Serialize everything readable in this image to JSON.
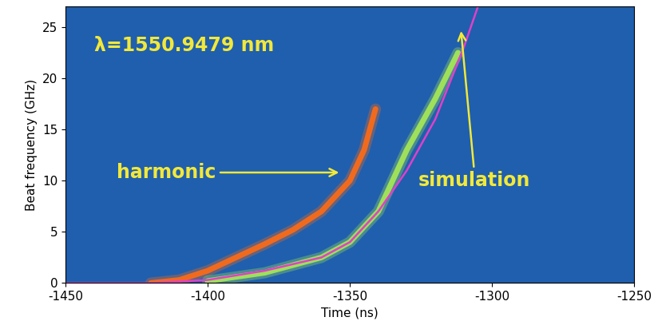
{
  "chart_data": {
    "type": "line",
    "xlabel": "Time (ns)",
    "ylabel": "Beat frequency (GHz)",
    "xlim": [
      -1450,
      -1250
    ],
    "ylim": [
      0,
      27
    ],
    "xticks": [
      -1450,
      -1400,
      -1350,
      -1300,
      -1250
    ],
    "yticks": [
      0,
      5,
      10,
      15,
      20,
      25
    ],
    "annotations": [
      "λ=1550.9479 nm",
      "harmonic",
      "simulation"
    ],
    "series": [
      {
        "color": "#f06a1e",
        "x": [
          -1420,
          -1410,
          -1400,
          -1390,
          -1380,
          -1370,
          -1360,
          -1350,
          -1345,
          -1341
        ],
        "values": [
          0,
          0.3,
          1.2,
          2.5,
          3.8,
          5.2,
          7.0,
          10.0,
          13.0,
          17.0
        ]
      },
      {
        "color": "#9ee05a",
        "x": [
          -1400,
          -1380,
          -1360,
          -1350,
          -1340,
          -1335,
          -1330,
          -1320,
          -1312
        ],
        "values": [
          0.2,
          1.0,
          2.5,
          4.0,
          7.0,
          10.0,
          13.0,
          18.0,
          22.5
        ]
      },
      {
        "color": "#e040c8",
        "x": [
          -1450,
          -1420,
          -1400,
          -1380,
          -1360,
          -1350,
          -1340,
          -1330,
          -1320,
          -1310,
          -1305
        ],
        "values": [
          0,
          0,
          0.3,
          1.2,
          2.5,
          4.0,
          7.0,
          11.0,
          16.0,
          23.0,
          27.0
        ]
      }
    ]
  }
}
